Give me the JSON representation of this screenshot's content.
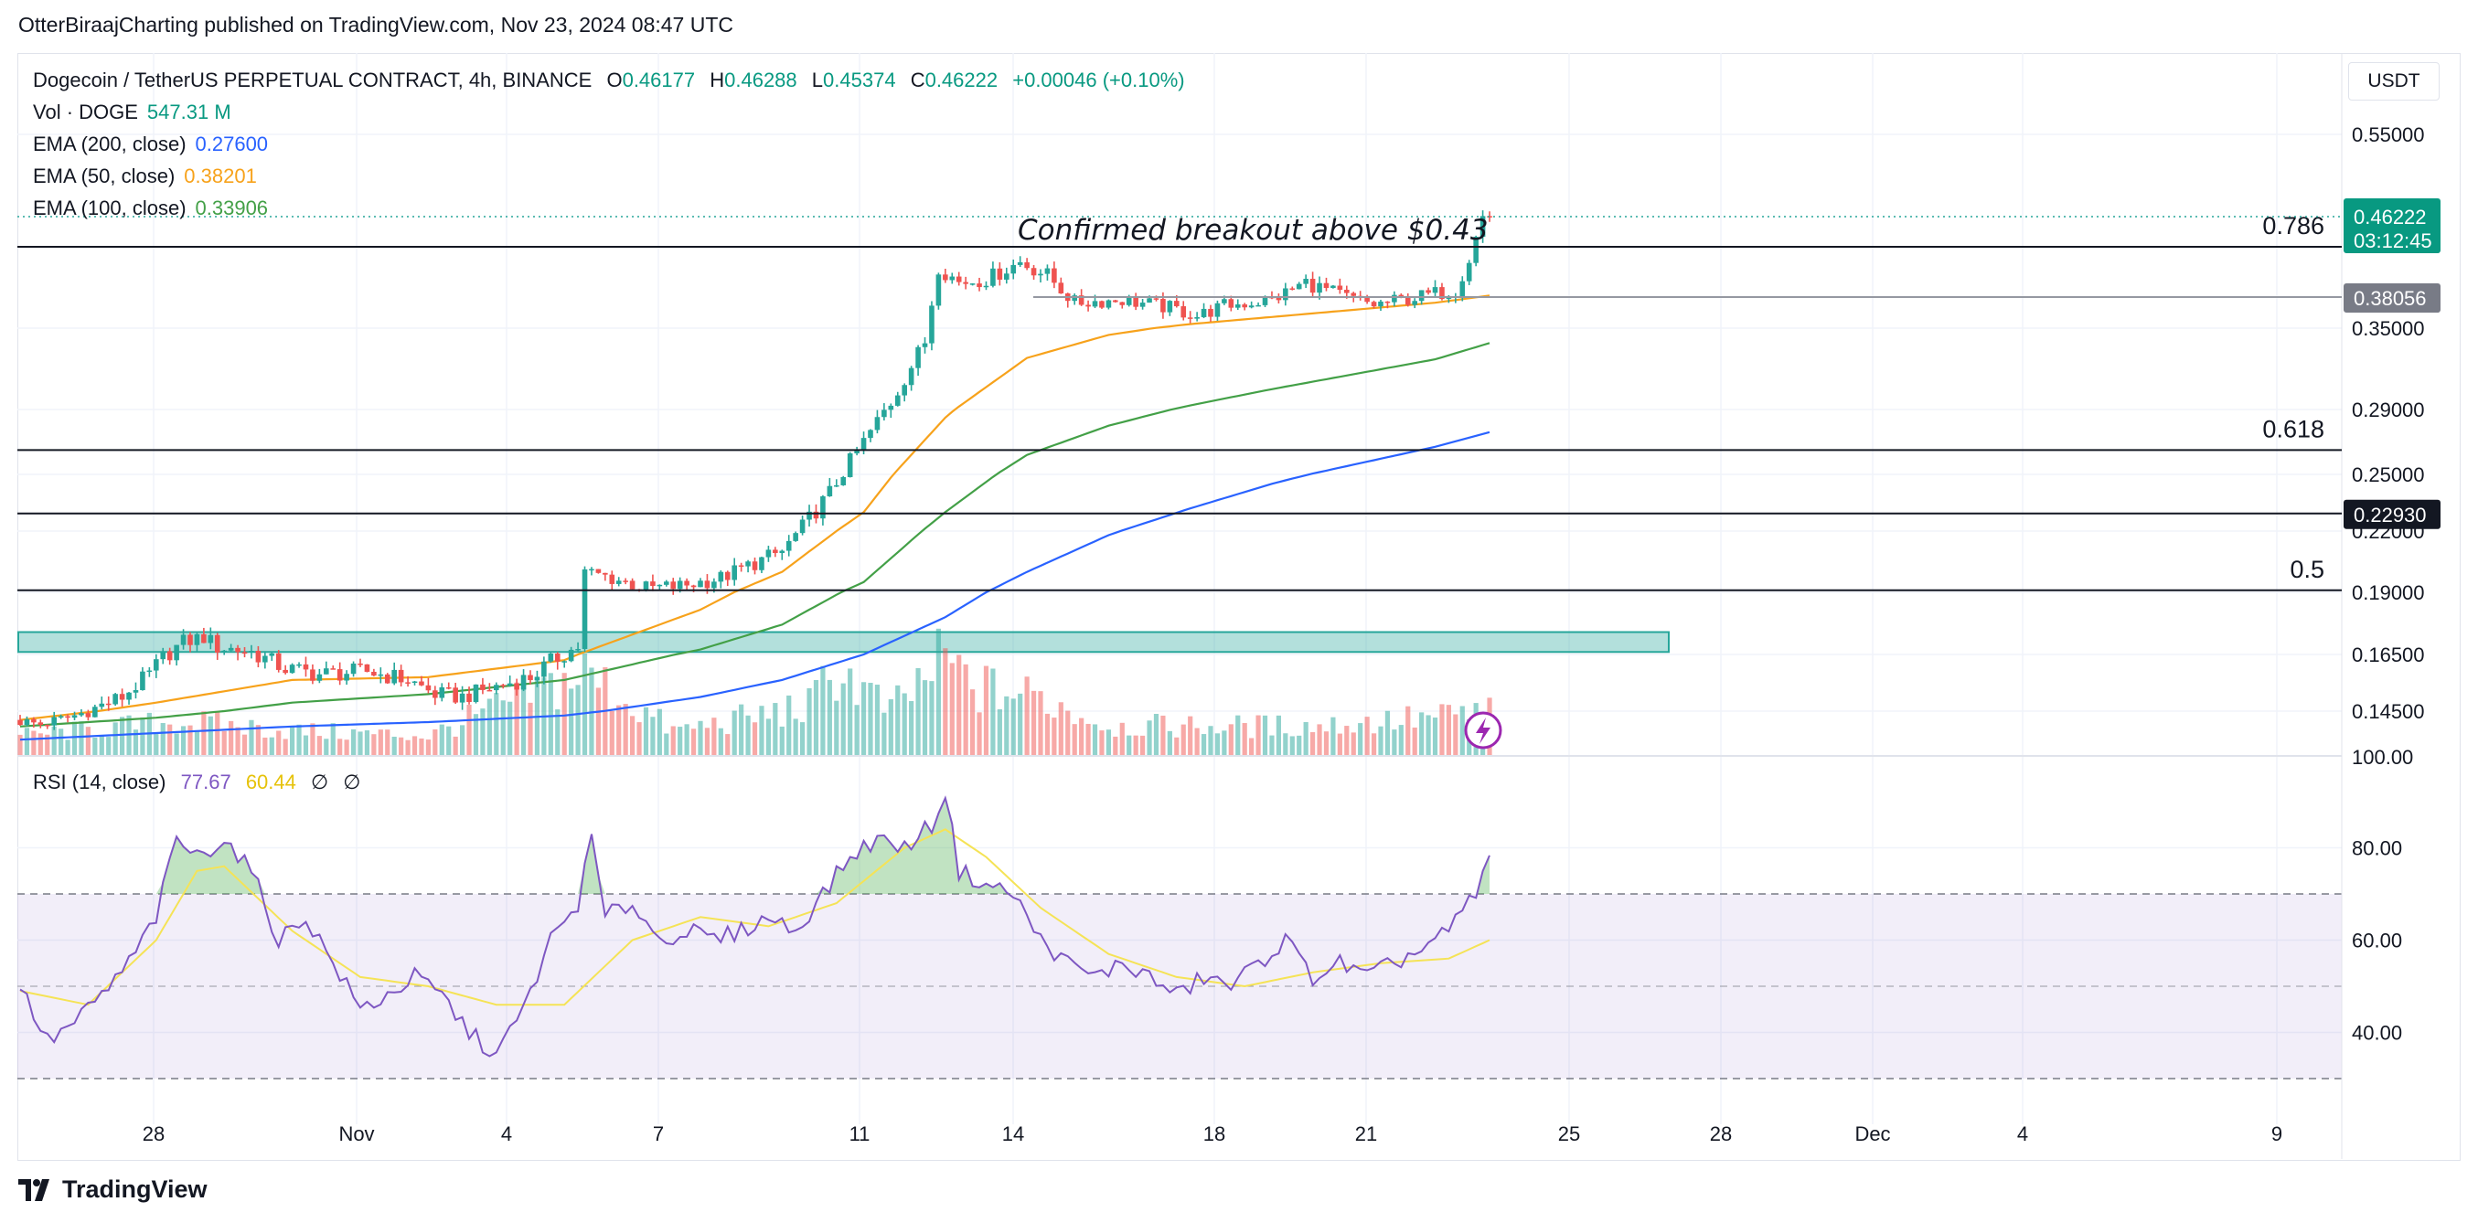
{
  "header": {
    "publisher": "OtterBiraajCharting published on TradingView.com, Nov 23, 2024 08:47 UTC"
  },
  "legend": {
    "title": "Dogecoin / TetherUS PERPETUAL CONTRACT, 4h, BINANCE",
    "o_label": "O",
    "o_value": "0.46177",
    "h_label": "H",
    "h_value": "0.46288",
    "l_label": "L",
    "l_value": "0.45374",
    "c_label": "C",
    "c_value": "0.46222",
    "change": "+0.00046 (+0.10%)",
    "vol_label": "Vol · DOGE",
    "vol_value": "547.31 M",
    "ema200_label": "EMA (200, close)",
    "ema200_value": "0.27600",
    "ema50_label": "EMA (50, close)",
    "ema50_value": "0.38201",
    "ema100_label": "EMA (100, close)",
    "ema100_value": "0.33906"
  },
  "rsi_legend": {
    "label": "RSI (14, close)",
    "value": "77.67",
    "ma_value": "60.44",
    "extra1": "∅",
    "extra2": "∅"
  },
  "currency_button": "USDT",
  "footer": {
    "brand": "TradingView"
  },
  "colors": {
    "up": "#26a69a",
    "down": "#ef5350",
    "ema50": "#f7a21b",
    "ema100": "#43a047",
    "ema200": "#2962ff",
    "rsi": "#7e57c2",
    "rsi_ma": "#f5e356",
    "zone": "#26a69a"
  },
  "chart_data": [
    {
      "type": "candlestick",
      "title": "Dogecoin / TetherUS PERPETUAL CONTRACT, 4h, BINANCE",
      "x_ticks": [
        "28",
        "Nov",
        "4",
        "7",
        "11",
        "14",
        "18",
        "21",
        "25",
        "28",
        "Dec",
        "4",
        "9"
      ],
      "y_ticks": [
        "0.55000",
        "0.35000",
        "0.29000",
        "0.25000",
        "0.22000",
        "0.19000",
        "0.16500",
        "0.14500",
        "100.00"
      ],
      "price_labels": [
        {
          "value": "0.46222",
          "countdown": "03:12:45",
          "color": "#089981"
        },
        {
          "value": "0.38056",
          "color": "#787b86"
        },
        {
          "value": "0.22930",
          "color": "#131722"
        }
      ],
      "fib_levels": [
        {
          "label": "0.786",
          "price": 0.43
        },
        {
          "label": "0.618",
          "price": 0.265
        },
        {
          "label": "0.5",
          "price": 0.191
        }
      ],
      "support_lines": [
        0.38056,
        0.2293
      ],
      "support_zone": [
        0.166,
        0.174
      ],
      "annotation": "Confirmed breakout above $0.43",
      "ylim": [
        0.13,
        0.62
      ],
      "price_anchors": [
        [
          0,
          0.141
        ],
        [
          4,
          0.139
        ],
        [
          8,
          0.142
        ],
        [
          12,
          0.146
        ],
        [
          16,
          0.15
        ],
        [
          20,
          0.158
        ],
        [
          22,
          0.164
        ],
        [
          25,
          0.17
        ],
        [
          28,
          0.172
        ],
        [
          30,
          0.168
        ],
        [
          35,
          0.166
        ],
        [
          40,
          0.16
        ],
        [
          45,
          0.158
        ],
        [
          52,
          0.159
        ],
        [
          58,
          0.156
        ],
        [
          62,
          0.151
        ],
        [
          66,
          0.15
        ],
        [
          70,
          0.153
        ],
        [
          76,
          0.157
        ],
        [
          80,
          0.164
        ],
        [
          83,
          0.168
        ],
        [
          84,
          0.2
        ],
        [
          88,
          0.197
        ],
        [
          93,
          0.192
        ],
        [
          98,
          0.193
        ],
        [
          104,
          0.197
        ],
        [
          108,
          0.203
        ],
        [
          113,
          0.21
        ],
        [
          116,
          0.222
        ],
        [
          120,
          0.24
        ],
        [
          125,
          0.27
        ],
        [
          129,
          0.295
        ],
        [
          134,
          0.34
        ],
        [
          136,
          0.41
        ],
        [
          139,
          0.395
        ],
        [
          143,
          0.398
        ],
        [
          148,
          0.415
        ],
        [
          152,
          0.402
        ],
        [
          156,
          0.375
        ],
        [
          163,
          0.378
        ],
        [
          170,
          0.37
        ],
        [
          174,
          0.362
        ],
        [
          178,
          0.372
        ],
        [
          185,
          0.378
        ],
        [
          190,
          0.395
        ],
        [
          196,
          0.38
        ],
        [
          200,
          0.373
        ],
        [
          206,
          0.38
        ],
        [
          212,
          0.388
        ],
        [
          214,
          0.418
        ],
        [
          216,
          0.462
        ]
      ],
      "ema50_anchors": [
        [
          0,
          0.141
        ],
        [
          20,
          0.148
        ],
        [
          40,
          0.156
        ],
        [
          60,
          0.157
        ],
        [
          80,
          0.163
        ],
        [
          100,
          0.183
        ],
        [
          112,
          0.2
        ],
        [
          124,
          0.23
        ],
        [
          136,
          0.285
        ],
        [
          148,
          0.328
        ],
        [
          160,
          0.345
        ],
        [
          172,
          0.354
        ],
        [
          184,
          0.361
        ],
        [
          196,
          0.368
        ],
        [
          208,
          0.375
        ],
        [
          216,
          0.382
        ]
      ],
      "ema100_anchors": [
        [
          0,
          0.138
        ],
        [
          20,
          0.142
        ],
        [
          40,
          0.148
        ],
        [
          60,
          0.151
        ],
        [
          80,
          0.156
        ],
        [
          100,
          0.167
        ],
        [
          112,
          0.177
        ],
        [
          124,
          0.195
        ],
        [
          136,
          0.23
        ],
        [
          148,
          0.262
        ],
        [
          160,
          0.28
        ],
        [
          172,
          0.293
        ],
        [
          184,
          0.305
        ],
        [
          196,
          0.316
        ],
        [
          208,
          0.327
        ],
        [
          216,
          0.339
        ]
      ],
      "ema200_anchors": [
        [
          0,
          0.132
        ],
        [
          20,
          0.135
        ],
        [
          40,
          0.138
        ],
        [
          60,
          0.14
        ],
        [
          80,
          0.143
        ],
        [
          100,
          0.15
        ],
        [
          112,
          0.156
        ],
        [
          124,
          0.165
        ],
        [
          136,
          0.18
        ],
        [
          148,
          0.2
        ],
        [
          160,
          0.218
        ],
        [
          172,
          0.232
        ],
        [
          184,
          0.245
        ],
        [
          196,
          0.256
        ],
        [
          208,
          0.267
        ],
        [
          216,
          0.276
        ]
      ],
      "volume_peaks": [
        [
          0,
          0.2
        ],
        [
          24,
          0.35
        ],
        [
          40,
          0.25
        ],
        [
          60,
          0.2
        ],
        [
          83,
          0.85
        ],
        [
          96,
          0.25
        ],
        [
          116,
          0.5
        ],
        [
          120,
          0.9
        ],
        [
          128,
          0.45
        ],
        [
          136,
          1.0
        ],
        [
          140,
          0.7
        ],
        [
          150,
          0.6
        ],
        [
          160,
          0.3
        ],
        [
          190,
          0.3
        ],
        [
          210,
          0.4
        ],
        [
          215,
          0.45
        ]
      ]
    },
    {
      "type": "line",
      "title": "RSI (14, close)",
      "y_ticks": [
        "80.00",
        "60.00",
        "40.00"
      ],
      "overbought": 70,
      "middle": 50,
      "oversold": 30,
      "ylim": [
        25,
        100
      ],
      "rsi_anchors": [
        [
          0,
          50
        ],
        [
          4,
          38
        ],
        [
          8,
          42
        ],
        [
          12,
          48
        ],
        [
          16,
          55
        ],
        [
          20,
          65
        ],
        [
          23,
          82
        ],
        [
          26,
          78
        ],
        [
          30,
          82
        ],
        [
          34,
          75
        ],
        [
          38,
          60
        ],
        [
          42,
          65
        ],
        [
          46,
          55
        ],
        [
          50,
          45
        ],
        [
          54,
          48
        ],
        [
          58,
          52
        ],
        [
          62,
          48
        ],
        [
          66,
          40
        ],
        [
          70,
          35
        ],
        [
          74,
          45
        ],
        [
          78,
          60
        ],
        [
          82,
          68
        ],
        [
          84,
          82
        ],
        [
          86,
          65
        ],
        [
          90,
          68
        ],
        [
          94,
          60
        ],
        [
          98,
          62
        ],
        [
          102,
          60
        ],
        [
          106,
          62
        ],
        [
          110,
          65
        ],
        [
          114,
          62
        ],
        [
          118,
          70
        ],
        [
          122,
          78
        ],
        [
          126,
          82
        ],
        [
          130,
          80
        ],
        [
          134,
          85
        ],
        [
          136,
          92
        ],
        [
          138,
          75
        ],
        [
          142,
          72
        ],
        [
          146,
          70
        ],
        [
          150,
          60
        ],
        [
          154,
          55
        ],
        [
          158,
          52
        ],
        [
          162,
          55
        ],
        [
          166,
          52
        ],
        [
          170,
          48
        ],
        [
          174,
          52
        ],
        [
          178,
          50
        ],
        [
          182,
          55
        ],
        [
          186,
          60
        ],
        [
          190,
          52
        ],
        [
          194,
          55
        ],
        [
          198,
          52
        ],
        [
          202,
          55
        ],
        [
          206,
          58
        ],
        [
          210,
          62
        ],
        [
          214,
          70
        ],
        [
          216,
          78
        ]
      ],
      "ma_anchors": [
        [
          0,
          49
        ],
        [
          10,
          46
        ],
        [
          20,
          60
        ],
        [
          26,
          75
        ],
        [
          30,
          76
        ],
        [
          40,
          62
        ],
        [
          50,
          52
        ],
        [
          60,
          50
        ],
        [
          70,
          46
        ],
        [
          80,
          46
        ],
        [
          90,
          60
        ],
        [
          100,
          65
        ],
        [
          110,
          63
        ],
        [
          120,
          68
        ],
        [
          130,
          80
        ],
        [
          136,
          84
        ],
        [
          142,
          78
        ],
        [
          150,
          67
        ],
        [
          160,
          57
        ],
        [
          170,
          52
        ],
        [
          180,
          50
        ],
        [
          190,
          53
        ],
        [
          200,
          55
        ],
        [
          210,
          56
        ],
        [
          216,
          60
        ]
      ]
    }
  ]
}
